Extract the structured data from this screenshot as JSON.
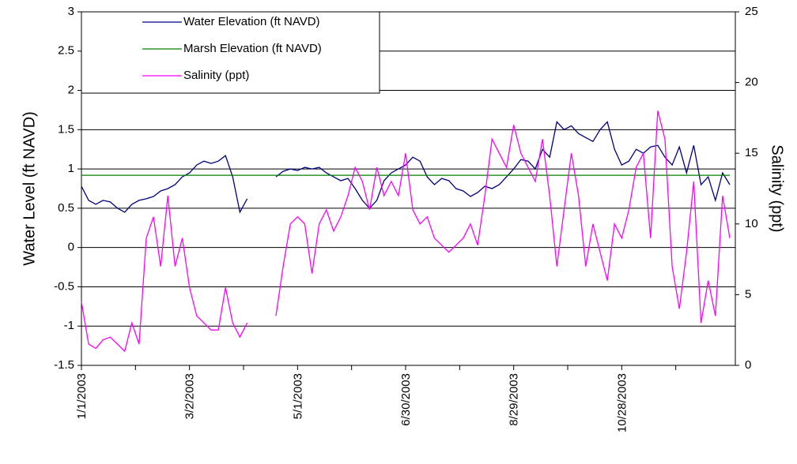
{
  "chart_data": {
    "type": "line",
    "x": [
      "1/1/2003",
      "1/5/2003",
      "1/9/2003",
      "1/13/2003",
      "1/17/2003",
      "1/21/2003",
      "1/25/2003",
      "1/29/2003",
      "2/2/2003",
      "2/6/2003",
      "2/10/2003",
      "2/14/2003",
      "2/18/2003",
      "2/22/2003",
      "2/26/2003",
      "3/2/2003",
      "3/6/2003",
      "3/10/2003",
      "3/14/2003",
      "3/18/2003",
      "3/22/2003",
      "3/26/2003",
      "3/30/2003",
      "4/3/2003",
      "4/7/2003",
      "4/11/2003",
      "4/15/2003",
      "4/19/2003",
      "4/23/2003",
      "4/27/2003",
      "5/1/2003",
      "5/5/2003",
      "5/9/2003",
      "5/13/2003",
      "5/17/2003",
      "5/21/2003",
      "5/25/2003",
      "5/29/2003",
      "6/2/2003",
      "6/6/2003",
      "6/10/2003",
      "6/14/2003",
      "6/18/2003",
      "6/22/2003",
      "6/26/2003",
      "6/30/2003",
      "7/4/2003",
      "7/8/2003",
      "7/12/2003",
      "7/16/2003",
      "7/20/2003",
      "7/24/2003",
      "7/28/2003",
      "8/1/2003",
      "8/5/2003",
      "8/9/2003",
      "8/13/2003",
      "8/17/2003",
      "8/21/2003",
      "8/25/2003",
      "8/29/2003",
      "9/2/2003",
      "9/6/2003",
      "9/10/2003",
      "9/14/2003",
      "9/18/2003",
      "9/22/2003",
      "9/26/2003",
      "9/30/2003",
      "10/4/2003",
      "10/8/2003",
      "10/12/2003",
      "10/16/2003",
      "10/20/2003",
      "10/24/2003",
      "10/28/2003",
      "11/1/2003",
      "11/5/2003",
      "11/9/2003",
      "11/13/2003",
      "11/17/2003",
      "11/21/2003",
      "11/25/2003",
      "11/29/2003",
      "12/3/2003",
      "12/7/2003",
      "12/11/2003",
      "12/15/2003",
      "12/19/2003",
      "12/23/2003",
      "12/27/2003"
    ],
    "series": [
      {
        "name": "Water Elevation (ft NAVD)",
        "color": "#000080",
        "axis": "y",
        "values": [
          0.78,
          0.6,
          0.55,
          0.6,
          0.58,
          0.5,
          0.45,
          0.55,
          0.6,
          0.62,
          0.65,
          0.72,
          0.75,
          0.8,
          0.9,
          0.95,
          1.05,
          1.1,
          1.07,
          1.1,
          1.17,
          0.9,
          0.45,
          0.62,
          null,
          null,
          null,
          0.9,
          0.97,
          1.0,
          0.98,
          1.02,
          1.0,
          1.02,
          0.95,
          0.9,
          0.85,
          0.88,
          0.75,
          0.6,
          0.5,
          0.6,
          0.85,
          0.95,
          1.0,
          1.05,
          1.15,
          1.1,
          0.9,
          0.8,
          0.88,
          0.85,
          0.75,
          0.72,
          0.65,
          0.7,
          0.78,
          0.75,
          0.8,
          0.9,
          1.0,
          1.12,
          1.1,
          1.0,
          1.25,
          1.15,
          1.6,
          1.5,
          1.55,
          1.45,
          1.4,
          1.35,
          1.5,
          1.6,
          1.25,
          1.05,
          1.1,
          1.25,
          1.2,
          1.28,
          1.3,
          1.15,
          1.05,
          1.28,
          0.95,
          1.3,
          0.8,
          0.9,
          0.6,
          0.95,
          0.8
        ]
      },
      {
        "name": "Marsh Elevation (ft NAVD)",
        "color": "#008000",
        "axis": "y",
        "values": [
          0.92,
          0.92,
          0.92,
          0.92,
          0.92,
          0.92,
          0.92,
          0.92,
          0.92,
          0.92,
          0.92,
          0.92,
          0.92,
          0.92,
          0.92,
          0.92,
          0.92,
          0.92,
          0.92,
          0.92,
          0.92,
          0.92,
          0.92,
          0.92,
          0.92,
          0.92,
          0.92,
          0.92,
          0.92,
          0.92,
          0.92,
          0.92,
          0.92,
          0.92,
          0.92,
          0.92,
          0.92,
          0.92,
          0.92,
          0.92,
          0.92,
          0.92,
          0.92,
          0.92,
          0.92,
          0.92,
          0.92,
          0.92,
          0.92,
          0.92,
          0.92,
          0.92,
          0.92,
          0.92,
          0.92,
          0.92,
          0.92,
          0.92,
          0.92,
          0.92,
          0.92,
          0.92,
          0.92,
          0.92,
          0.92,
          0.92,
          0.92,
          0.92,
          0.92,
          0.92,
          0.92,
          0.92,
          0.92,
          0.92,
          0.92,
          0.92,
          0.92,
          0.92,
          0.92,
          0.92,
          0.92,
          0.92,
          0.92,
          0.92,
          0.92,
          0.92,
          0.92,
          0.92,
          0.92,
          0.92,
          0.92
        ]
      },
      {
        "name": "Salinity (ppt)",
        "color": "#ff00ff",
        "axis": "y2",
        "values": [
          4.5,
          1.5,
          1.2,
          1.8,
          2.0,
          1.5,
          1.0,
          3.0,
          1.5,
          9,
          10.5,
          7,
          12,
          7,
          9,
          5.5,
          3.5,
          3.0,
          2.5,
          2.5,
          5.5,
          3.0,
          2.0,
          3.0,
          null,
          null,
          null,
          3.5,
          7,
          10,
          10.5,
          10,
          6.5,
          10,
          11,
          9.5,
          10.5,
          12,
          14,
          13,
          11,
          14,
          12,
          13,
          12,
          15,
          11,
          10,
          10.5,
          9,
          8.5,
          8,
          8.5,
          9,
          10,
          8.5,
          12,
          16,
          15,
          14,
          17,
          15,
          14,
          13,
          16,
          12,
          7,
          11,
          15,
          12,
          7,
          10,
          8,
          6,
          10,
          9,
          11,
          14,
          15,
          9,
          18,
          16,
          7,
          4,
          8,
          13,
          3,
          6,
          3.5,
          12,
          9
        ]
      }
    ],
    "xticks": [
      "1/1/2003",
      "3/2/2003",
      "5/1/2003",
      "6/30/2003",
      "8/29/2003",
      "10/28/2003"
    ],
    "ylim": [
      -1.5,
      3
    ],
    "yticks": [
      -1.5,
      -1,
      -0.5,
      0,
      0.5,
      1,
      1.5,
      2,
      2.5,
      3
    ],
    "y2lim": [
      0,
      25
    ],
    "y2ticks": [
      0,
      5,
      10,
      15,
      20,
      25
    ],
    "ylabel": "Water Level (ft NAVD)",
    "y2label": "Salinity (ppt)",
    "grid": true,
    "legend": "top-left"
  }
}
